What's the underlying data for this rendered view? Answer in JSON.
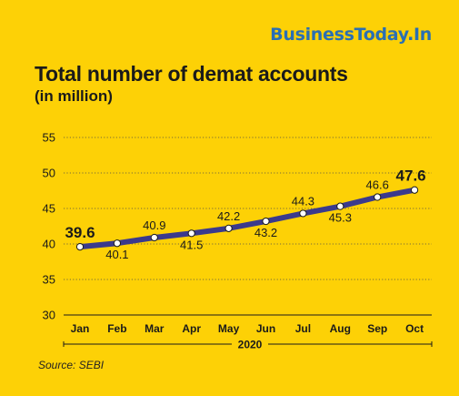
{
  "brand": "BusinessToday.In",
  "source": "Source: SEBI",
  "colors": {
    "background": "#FDD106",
    "line": "#3B3A8C",
    "brand": "#2a6fb3",
    "text": "#1a1a1a"
  },
  "chart_data": {
    "type": "line",
    "title": "Total number of demat accounts",
    "subtitle": "(in million)",
    "categories": [
      "Jan",
      "Feb",
      "Mar",
      "Apr",
      "May",
      "Jun",
      "Jul",
      "Aug",
      "Sep",
      "Oct"
    ],
    "x_group_label": "2020",
    "values": [
      39.6,
      40.1,
      40.9,
      41.5,
      42.2,
      43.2,
      44.3,
      45.3,
      46.6,
      47.6
    ],
    "label_position": [
      "above",
      "below",
      "above",
      "below",
      "above",
      "below",
      "above",
      "below",
      "above",
      "above"
    ],
    "emphasized_labels": [
      0,
      9
    ],
    "ylim": [
      30,
      55
    ],
    "yticks": [
      30,
      35,
      40,
      45,
      50,
      55
    ],
    "grid": true,
    "legend": "none"
  }
}
